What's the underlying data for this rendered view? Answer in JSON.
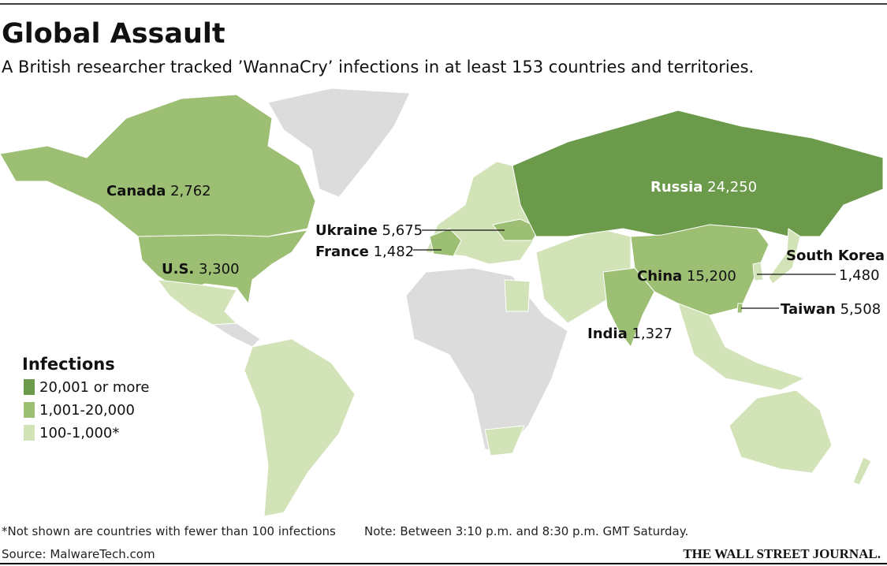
{
  "title": "Global Assault",
  "subtitle": "A British researcher tracked ’WannaCry’ infections in at least 153 countries and territories.",
  "labels": [
    {
      "name": "Canada",
      "value": "2,762"
    },
    {
      "name": "U.S.",
      "value": "3,300"
    },
    {
      "name": "Ukraine",
      "value": "5,675"
    },
    {
      "name": "France",
      "value": "1,482"
    },
    {
      "name": "Russia",
      "value": "24,250"
    },
    {
      "name": "China",
      "value": "15,200"
    },
    {
      "name": "South Korea",
      "value": "1,480"
    },
    {
      "name": "Taiwan",
      "value": "5,508"
    },
    {
      "name": "India",
      "value": "1,327"
    }
  ],
  "legend": {
    "title": "Infections",
    "items": [
      {
        "label": "20,001 or more",
        "color": "#6b9a4b"
      },
      {
        "label": "1,001-20,000",
        "color": "#9dbf73"
      },
      {
        "label": "100-1,000*",
        "color": "#d3e3b8"
      }
    ]
  },
  "footnote": "*Not shown are countries with fewer than 100 infections",
  "note": "Note: Between 3:10 p.m. and 8:30 p.m. GMT Saturday.",
  "source": "Source: MalwareTech.com",
  "publisher": "THE WALL STREET JOURNAL."
}
